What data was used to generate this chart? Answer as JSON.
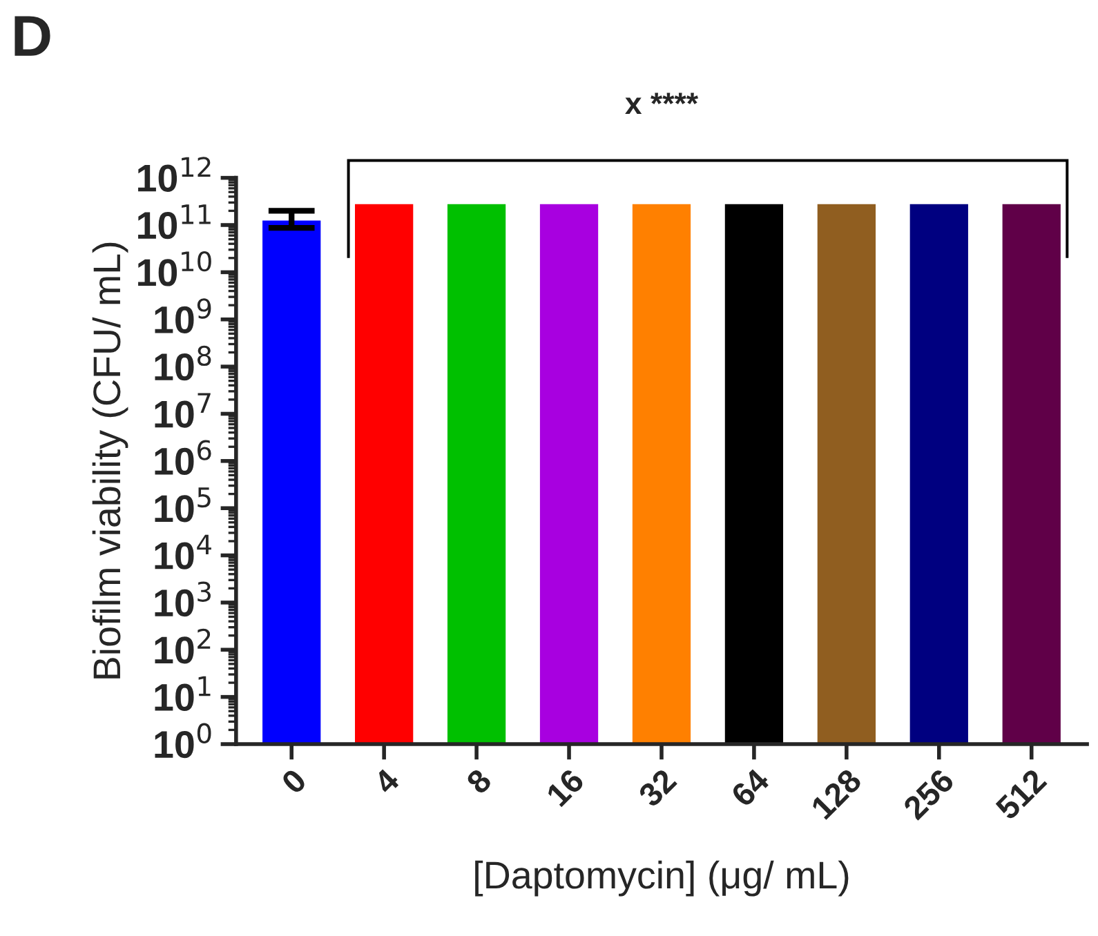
{
  "chart_data": {
    "type": "bar",
    "xlabel": "[Daptomycin] (μg/ mL)",
    "ylabel": "Biofilm viability (CFU/ mL)",
    "annotations": [
      "D",
      "x ****"
    ],
    "categories": [
      "0",
      "4",
      "8",
      "16",
      "32",
      "64",
      "128",
      "256",
      "512"
    ],
    "values": [
      130000000000,
      290000000000,
      290000000000,
      290000000000,
      290000000000,
      290000000000,
      290000000000,
      290000000000,
      290000000000
    ],
    "errors": [
      [
        87000000000,
        200000000000
      ],
      null,
      null,
      null,
      null,
      null,
      null,
      null,
      null
    ],
    "colors": [
      "#0000ff",
      "#ff0000",
      "#00c000",
      "#a800e0",
      "#ff8000",
      "#000000",
      "#905e20",
      "#000080",
      "#600048"
    ],
    "log": true,
    "ylim": [
      1,
      1000000000000
    ],
    "yticks": [
      {
        "value": 1,
        "label": "10$^{0}$"
      },
      {
        "value": 10,
        "label": "10$^{1}$"
      },
      {
        "value": 100,
        "label": "10$^{2}$"
      },
      {
        "value": 1000,
        "label": "10$^{3}$"
      },
      {
        "value": 10000,
        "label": "10$^{4}$"
      },
      {
        "value": 100000,
        "label": "10$^{5}$"
      },
      {
        "value": 1000000,
        "label": "10$^{6}$"
      },
      {
        "value": 10000000,
        "label": "10$^{7}$"
      },
      {
        "value": 100000000,
        "label": "10$^{8}$"
      },
      {
        "value": 1000000000,
        "label": "10$^{9}$"
      },
      {
        "value": 10000000000,
        "label": "10$^{10}$"
      },
      {
        "value": 100000000000,
        "label": "10$^{11}$"
      },
      {
        "value": 1000000000000,
        "label": "10$^{12}$"
      }
    ],
    "grid": false,
    "legend": false
  }
}
